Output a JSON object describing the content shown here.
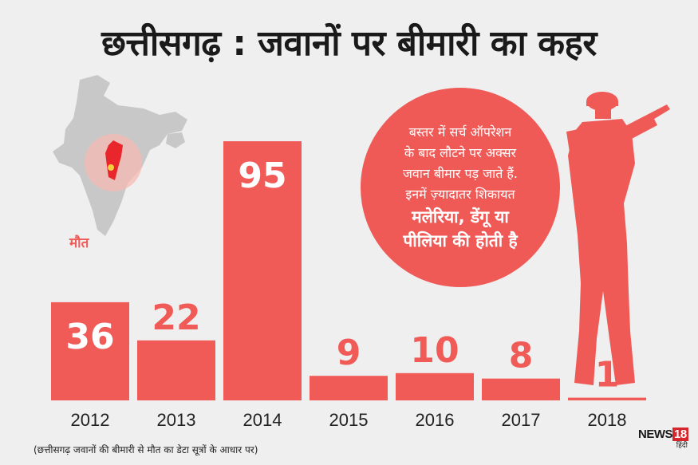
{
  "title": "छत्तीसगढ़ : जवानों पर बीमारी का कहर",
  "callout": {
    "lines": [
      "बस्तर में सर्च ऑपरेशन",
      "के बाद लौटने पर अक्सर",
      "जवान बीमार पड़ जाते हैं.",
      "इनमें ज़्यादातर शिकायत"
    ],
    "bold_lines": [
      "मलेरिया, डेंगू या",
      "पीलिया की होती है"
    ]
  },
  "footnote": "(छत्तीसगढ़ जवानों की बीमारी से मौत का डेटा सूत्रों के आधार पर)",
  "brand": {
    "name": "NEWS",
    "number": "18",
    "sub": "हिंदी"
  },
  "colors": {
    "bar": "#f05a57",
    "map_land": "#c8c8c8",
    "highlight_state": "#e8262b",
    "halo": "#f7b9b3",
    "silhouette": "#ef5a57"
  },
  "icons": [
    "india-map-icon",
    "soldier-silhouette-icon"
  ],
  "chart_data": {
    "type": "bar",
    "categories": [
      "2012",
      "2013",
      "2014",
      "2015",
      "2016",
      "2017",
      "2018"
    ],
    "series": [
      {
        "name": "मौत",
        "values": [
          36,
          22,
          95,
          9,
          10,
          8,
          1
        ]
      }
    ],
    "value_labels": [
      "36",
      "22",
      "95",
      "9",
      "10",
      "8",
      "1"
    ],
    "xlabel": "",
    "ylabel": "",
    "ylim": [
      0,
      100
    ],
    "grid": false,
    "legend": "none"
  }
}
